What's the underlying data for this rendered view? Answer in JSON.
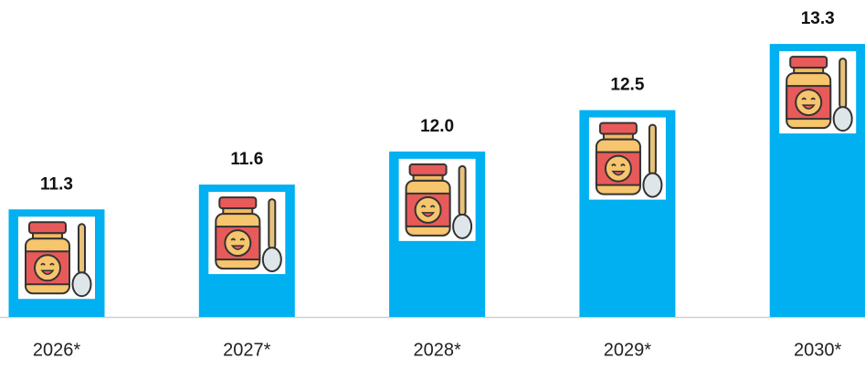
{
  "chart_data": {
    "type": "bar",
    "categories": [
      "2026*",
      "2027*",
      "2028*",
      "2029*",
      "2030*"
    ],
    "values": [
      11.3,
      11.6,
      12.0,
      12.5,
      13.3
    ],
    "value_labels": [
      "11.3",
      "11.6",
      "12.0",
      "12.5",
      "13.3"
    ],
    "color": "#00b0f0",
    "ylim": [
      10,
      13.5
    ]
  }
}
